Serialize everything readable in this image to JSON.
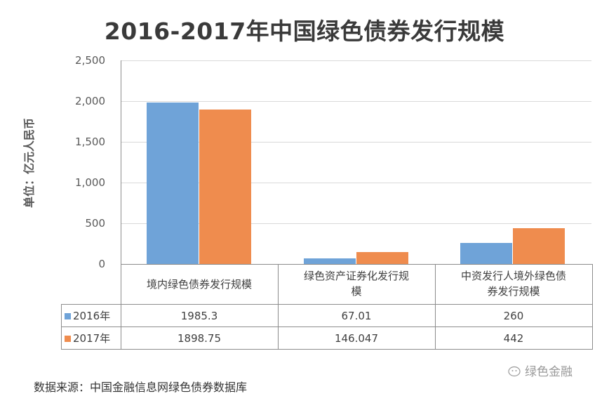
{
  "title": "2016-2017年中国绿色债券发行规模",
  "y_axis_label": "单位：亿元人民币",
  "y_ticks": [
    "2,500",
    "2,000",
    "1,500",
    "1,000",
    "500",
    "0"
  ],
  "colors": {
    "series_2016": "#6fa3d8",
    "series_2017": "#ef8c4e",
    "grid": "#d9d9d9",
    "axis": "#8c8c8c"
  },
  "table": {
    "categories": [
      "境内绿色债券发行规模",
      "绿色资产证券化发行规\n模",
      "中资发行人境外绿色债\n券发行规模"
    ],
    "rows": [
      {
        "label": "2016年",
        "values": [
          "1985.3",
          "67.01",
          "260"
        ]
      },
      {
        "label": "2017年",
        "values": [
          "1898.75",
          "146.047",
          "442"
        ]
      }
    ]
  },
  "source": "数据来源：中国金融信息网绿色债券数据库",
  "watermark": "绿色金融",
  "chart_data": {
    "type": "bar",
    "title": "2016-2017年中国绿色债券发行规模",
    "xlabel": "",
    "ylabel": "单位：亿元人民币",
    "ylim": [
      0,
      2500
    ],
    "yticks": [
      0,
      500,
      1000,
      1500,
      2000,
      2500
    ],
    "grid": true,
    "legend_position": "data-table",
    "categories": [
      "境内绿色债券发行规模",
      "绿色资产证券化发行规模",
      "中资发行人境外绿色债券发行规模"
    ],
    "series": [
      {
        "name": "2016年",
        "color": "#6fa3d8",
        "values": [
          1985.3,
          67.01,
          260
        ]
      },
      {
        "name": "2017年",
        "color": "#ef8c4e",
        "values": [
          1898.75,
          146.047,
          442
        ]
      }
    ]
  }
}
